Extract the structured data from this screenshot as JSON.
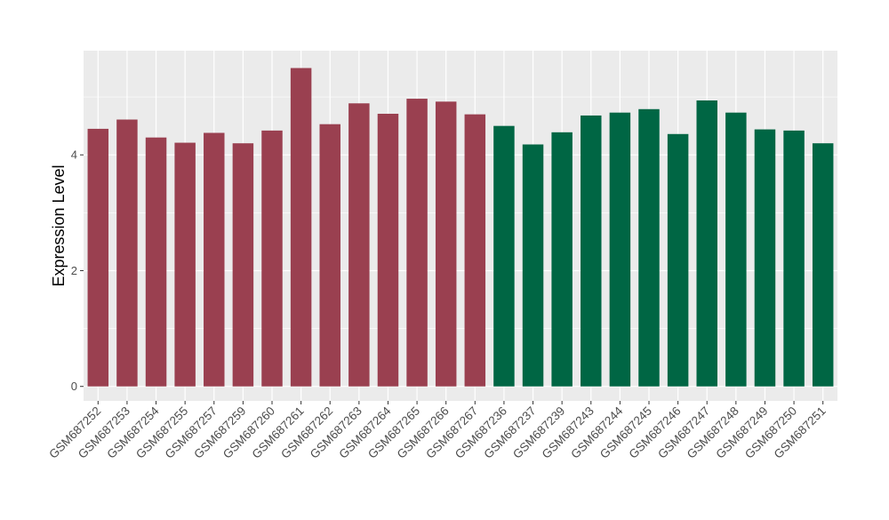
{
  "chart_data": {
    "type": "bar",
    "title": "",
    "xlabel": "",
    "ylabel": "Expression Level",
    "ylim": [
      -0.25,
      5.8
    ],
    "yticks": [
      0,
      2,
      4
    ],
    "grid": true,
    "legend": "none",
    "panel_background": "#ebebeb",
    "grid_color": "#ffffff",
    "categories": [
      "GSM687252",
      "GSM687253",
      "GSM687254",
      "GSM687255",
      "GSM687257",
      "GSM687259",
      "GSM687260",
      "GSM687261",
      "GSM687262",
      "GSM687263",
      "GSM687264",
      "GSM687265",
      "GSM687266",
      "GSM687267",
      "GSM687236",
      "GSM687237",
      "GSM687239",
      "GSM687243",
      "GSM687244",
      "GSM687245",
      "GSM687246",
      "GSM687247",
      "GSM687248",
      "GSM687249",
      "GSM687250",
      "GSM687251"
    ],
    "values": [
      4.45,
      4.61,
      4.3,
      4.21,
      4.38,
      4.2,
      4.42,
      5.5,
      4.53,
      4.89,
      4.71,
      4.97,
      4.92,
      4.7,
      4.5,
      4.18,
      4.39,
      4.68,
      4.73,
      4.79,
      4.36,
      4.94,
      4.73,
      4.44,
      4.42,
      4.2
    ],
    "group": [
      0,
      0,
      0,
      0,
      0,
      0,
      0,
      0,
      0,
      0,
      0,
      0,
      0,
      0,
      1,
      1,
      1,
      1,
      1,
      1,
      1,
      1,
      1,
      1,
      1,
      1
    ],
    "group_colors": [
      "#9a4050",
      "#006644"
    ]
  }
}
